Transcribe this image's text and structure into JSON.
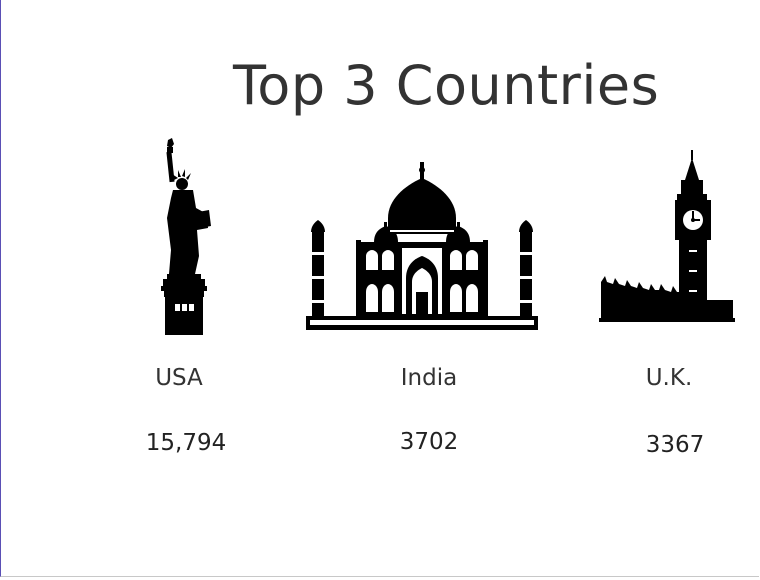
{
  "slide": {
    "title": "Top 3 Countries"
  },
  "countries": [
    {
      "name": "USA",
      "value": "15,794",
      "icon": "statue-of-liberty-icon"
    },
    {
      "name": "India",
      "value": "3702",
      "icon": "taj-mahal-icon"
    },
    {
      "name": "U.K.",
      "value": "3367",
      "icon": "big-ben-icon"
    }
  ],
  "colors": {
    "text": "#333333",
    "icon": "#000000",
    "accent_border": "#5a4fb5"
  }
}
